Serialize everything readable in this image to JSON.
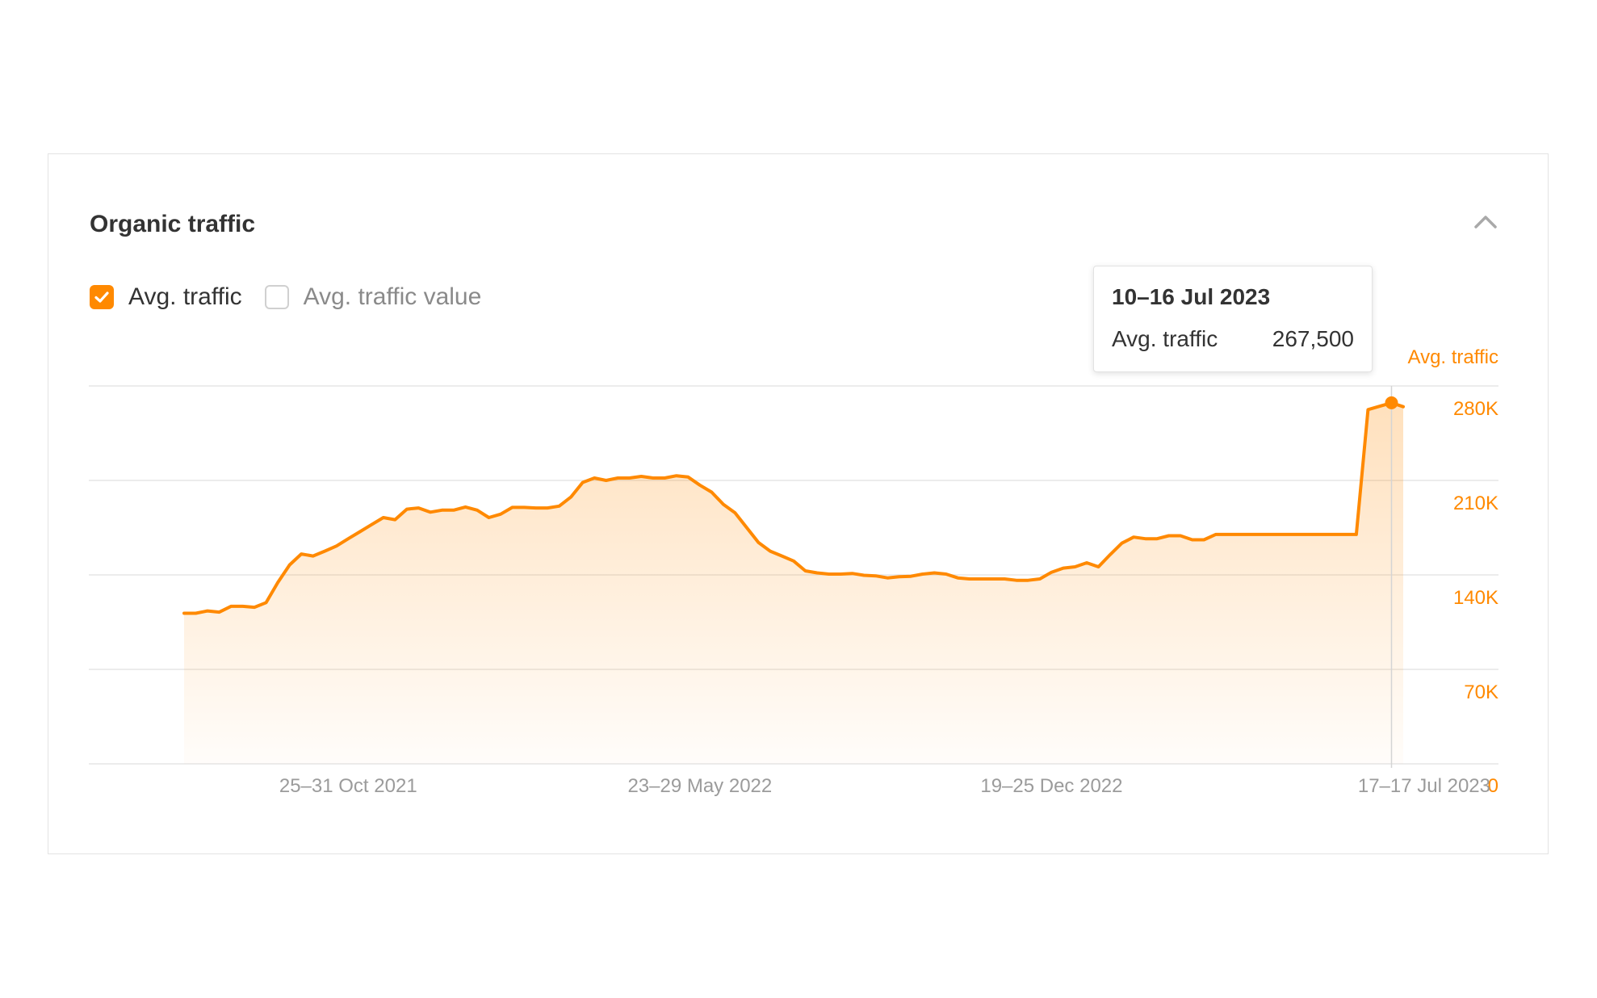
{
  "panel": {
    "title": "Organic traffic"
  },
  "legend": {
    "items": [
      {
        "label": "Avg. traffic",
        "checked": true
      },
      {
        "label": "Avg. traffic value",
        "checked": false
      }
    ]
  },
  "tooltip": {
    "date": "10–16 Jul 2023",
    "metric_label": "Avg. traffic",
    "metric_value": "267,500"
  },
  "colors": {
    "accent": "#ff8900",
    "grid": "#e6e6e6",
    "axis_text": "#9b9b9b"
  },
  "icons": {
    "collapse": "chevron-up-icon",
    "checked": "checkmark-icon"
  },
  "chart_data": {
    "type": "area",
    "title": "",
    "ylabel": "Avg. traffic",
    "xlabel": "",
    "ylim": [
      0,
      280000
    ],
    "yticks": [
      0,
      70000,
      140000,
      210000,
      280000
    ],
    "ytick_labels": [
      "0",
      "70K",
      "140K",
      "210K",
      "280K"
    ],
    "xtick_labels": [
      "25–31 Oct 2021",
      "23–29 May 2022",
      "19–25 Dec 2022",
      "17–17 Jul 2023"
    ],
    "xtick_positions": [
      "2021-10-25",
      "2022-05-23",
      "2022-12-19",
      "2023-07-17"
    ],
    "grid": true,
    "legend": "top-left",
    "series": [
      {
        "name": "Avg. traffic",
        "x": [
          "2021-07-19",
          "2021-07-26",
          "2021-08-02",
          "2021-08-09",
          "2021-08-16",
          "2021-08-23",
          "2021-08-30",
          "2021-09-06",
          "2021-09-13",
          "2021-09-20",
          "2021-09-27",
          "2021-10-04",
          "2021-10-11",
          "2021-10-18",
          "2021-10-25",
          "2021-11-01",
          "2021-11-08",
          "2021-11-15",
          "2021-11-22",
          "2021-11-29",
          "2021-12-06",
          "2021-12-13",
          "2021-12-20",
          "2021-12-27",
          "2022-01-03",
          "2022-01-10",
          "2022-01-17",
          "2022-01-24",
          "2022-01-31",
          "2022-02-07",
          "2022-02-14",
          "2022-02-21",
          "2022-02-28",
          "2022-03-07",
          "2022-03-14",
          "2022-03-21",
          "2022-03-28",
          "2022-04-04",
          "2022-04-11",
          "2022-04-18",
          "2022-04-25",
          "2022-05-02",
          "2022-05-09",
          "2022-05-16",
          "2022-05-23",
          "2022-05-30",
          "2022-06-06",
          "2022-06-13",
          "2022-06-20",
          "2022-06-27",
          "2022-07-04",
          "2022-07-11",
          "2022-07-18",
          "2022-07-25",
          "2022-08-01",
          "2022-08-08",
          "2022-08-15",
          "2022-08-22",
          "2022-08-29",
          "2022-09-05",
          "2022-09-12",
          "2022-09-19",
          "2022-09-26",
          "2022-10-03",
          "2022-10-10",
          "2022-10-17",
          "2022-10-24",
          "2022-10-31",
          "2022-11-07",
          "2022-11-14",
          "2022-11-21",
          "2022-11-28",
          "2022-12-05",
          "2022-12-12",
          "2022-12-19",
          "2022-12-26",
          "2023-01-02",
          "2023-01-09",
          "2023-01-16",
          "2023-01-23",
          "2023-01-30",
          "2023-02-06",
          "2023-02-13",
          "2023-02-20",
          "2023-02-27",
          "2023-03-06",
          "2023-03-13",
          "2023-03-20",
          "2023-03-27",
          "2023-04-03",
          "2023-04-10",
          "2023-04-17",
          "2023-04-24",
          "2023-05-01",
          "2023-05-08",
          "2023-05-15",
          "2023-05-22",
          "2023-05-29",
          "2023-06-05",
          "2023-06-12",
          "2023-06-19",
          "2023-06-26",
          "2023-07-03",
          "2023-07-10",
          "2023-07-17"
        ],
        "values": [
          111600,
          111600,
          113300,
          112400,
          116700,
          116700,
          116000,
          119500,
          134500,
          147400,
          155500,
          154000,
          157600,
          161400,
          166800,
          172000,
          177300,
          182500,
          180900,
          188700,
          189600,
          186500,
          188000,
          188000,
          190300,
          188000,
          182500,
          185000,
          190000,
          190000,
          189600,
          189600,
          191000,
          197700,
          208500,
          211800,
          210000,
          211800,
          211800,
          213000,
          211800,
          211800,
          213500,
          212500,
          206500,
          201300,
          192300,
          186000,
          175000,
          164000,
          157600,
          154000,
          150300,
          143000,
          141500,
          140600,
          140600,
          141100,
          139700,
          139300,
          137800,
          138600,
          139000,
          140600,
          141500,
          140600,
          137800,
          137000,
          137000,
          137000,
          137000,
          136000,
          136000,
          137000,
          142000,
          145000,
          146000,
          149000,
          146000,
          155000,
          163500,
          168000,
          166800,
          166800,
          169000,
          169000,
          166000,
          166000,
          170000,
          170000,
          170000,
          170000,
          170000,
          170000,
          170000,
          170000,
          170000,
          170000,
          170000,
          170000,
          170000,
          262500,
          265000,
          267500,
          264600
        ]
      }
    ],
    "highlight": {
      "x": "2023-07-10",
      "value": 267500
    }
  }
}
